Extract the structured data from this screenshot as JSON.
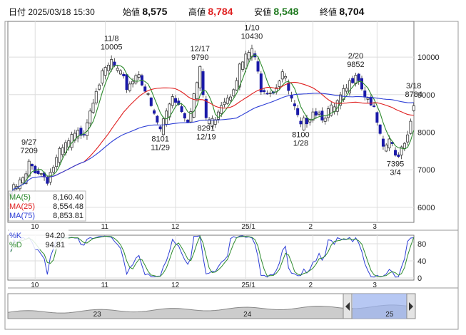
{
  "header": {
    "date_label": "日付",
    "date_value": "2025/03/18 15:30",
    "open_label": "始値",
    "open_value": "8,575",
    "high_label": "高値",
    "high_value": "8,784",
    "low_label": "安値",
    "low_value": "8,548",
    "close_label": "終値",
    "close_value": "8,704"
  },
  "colors": {
    "up": "#ffffff",
    "down": "#1a1aa8",
    "ma5": "#2e8b2e",
    "ma25": "#e02020",
    "ma75": "#2e3fd6",
    "k": "#2e3fd6",
    "d": "#2e8b2e",
    "high_value": "#e02020",
    "low_value": "#1f7a1f"
  },
  "chart_data": [
    {
      "type": "candlestick",
      "y_ticks": [
        "10000",
        "9000",
        "8000",
        "7000",
        "6000"
      ],
      "y_tick_values": [
        10000,
        9000,
        8000,
        7000,
        6000
      ],
      "ylim": [
        5600,
        10950
      ],
      "x_ticks": [
        "10",
        "11",
        "12",
        "25/1",
        "2",
        "3"
      ],
      "x_tick_index": [
        8,
        31,
        54,
        77,
        99,
        120
      ],
      "n_bars": 133,
      "anchors": [
        {
          "i": 0,
          "v": 6450
        },
        {
          "i": 5,
          "v": 6900
        },
        {
          "i": 6,
          "v": 7209
        },
        {
          "i": 9,
          "v": 7050
        },
        {
          "i": 12,
          "v": 6850
        },
        {
          "i": 16,
          "v": 7500
        },
        {
          "i": 20,
          "v": 7900
        },
        {
          "i": 24,
          "v": 8150
        },
        {
          "i": 28,
          "v": 9300
        },
        {
          "i": 33,
          "v": 9950
        },
        {
          "i": 38,
          "v": 9300
        },
        {
          "i": 42,
          "v": 9700
        },
        {
          "i": 47,
          "v": 8500
        },
        {
          "i": 49,
          "v": 8150
        },
        {
          "i": 53,
          "v": 9100
        },
        {
          "i": 58,
          "v": 8450
        },
        {
          "i": 62,
          "v": 9700
        },
        {
          "i": 64,
          "v": 8450
        },
        {
          "i": 66,
          "v": 8350
        },
        {
          "i": 69,
          "v": 8900
        },
        {
          "i": 72,
          "v": 9150
        },
        {
          "i": 75,
          "v": 9800
        },
        {
          "i": 79,
          "v": 10300
        },
        {
          "i": 82,
          "v": 9300
        },
        {
          "i": 86,
          "v": 9200
        },
        {
          "i": 89,
          "v": 9700
        },
        {
          "i": 92,
          "v": 8900
        },
        {
          "i": 95,
          "v": 8180
        },
        {
          "i": 99,
          "v": 8700
        },
        {
          "i": 102,
          "v": 8550
        },
        {
          "i": 106,
          "v": 8700
        },
        {
          "i": 111,
          "v": 9350
        },
        {
          "i": 113,
          "v": 9750
        },
        {
          "i": 116,
          "v": 9100
        },
        {
          "i": 118,
          "v": 8900
        },
        {
          "i": 120,
          "v": 8300
        },
        {
          "i": 122,
          "v": 7550
        },
        {
          "i": 124,
          "v": 7900
        },
        {
          "i": 126,
          "v": 7420
        },
        {
          "i": 128,
          "v": 7700
        },
        {
          "i": 130,
          "v": 8100
        },
        {
          "i": 132,
          "v": 8704
        }
      ],
      "series": [
        {
          "name": "MA(5)",
          "period": 5
        },
        {
          "name": "MA(25)",
          "period": 25
        },
        {
          "name": "MA(75)",
          "period": 75
        }
      ],
      "legend": [
        {
          "name": "MA(5)",
          "value": "8,160.40"
        },
        {
          "name": "MA(25)",
          "value": "8,554.48"
        },
        {
          "name": "MA(75)",
          "value": "8,853.81"
        }
      ],
      "annotations": [
        {
          "date": "9/27",
          "value": "7209",
          "i": 6,
          "side": "above"
        },
        {
          "date": "11/8",
          "value": "10005",
          "i": 33,
          "side": "above"
        },
        {
          "date": "8101",
          "value": "11/29",
          "i": 49,
          "side": "below"
        },
        {
          "date": "12/17",
          "value": "9790",
          "i": 62,
          "side": "above"
        },
        {
          "date": "8291",
          "value": "12/19",
          "i": 64,
          "side": "below"
        },
        {
          "date": "1/10",
          "value": "10430",
          "i": 79,
          "side": "above"
        },
        {
          "date": "8100",
          "value": "1/28",
          "i": 95,
          "side": "below"
        },
        {
          "date": "2/20",
          "value": "9852",
          "i": 113,
          "side": "above"
        },
        {
          "date": "7395",
          "value": "3/4",
          "i": 126,
          "side": "below"
        },
        {
          "date": "3/18",
          "value": "8784",
          "i": 132,
          "side": "above"
        }
      ]
    },
    {
      "type": "line",
      "y_ticks": [
        "80",
        "40",
        "0"
      ],
      "y_tick_values": [
        80,
        40,
        0
      ],
      "ylim": [
        -5,
        100
      ],
      "x_ticks": [
        "10",
        "11",
        "12",
        "25/1",
        "2",
        "3"
      ],
      "series": [
        {
          "name": "%K",
          "value": "94.20"
        },
        {
          "name": "%D",
          "value": "94.81"
        }
      ]
    }
  ],
  "navigator": {
    "labels": [
      "23",
      "24",
      "25"
    ],
    "label_pos": [
      0.22,
      0.59,
      0.94
    ]
  }
}
